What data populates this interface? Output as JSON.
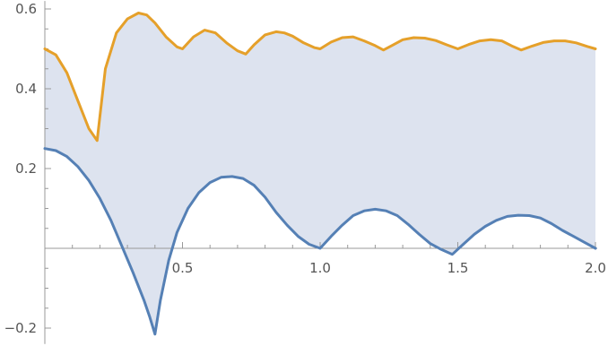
{
  "chart_data": {
    "type": "area",
    "xlim": [
      0,
      2.0
    ],
    "ylim": [
      -0.24,
      0.62
    ],
    "grid": false,
    "legend": "none",
    "x_ticks": [
      {
        "value": 0.5,
        "label": "0.5"
      },
      {
        "value": 1.0,
        "label": "1.0"
      },
      {
        "value": 1.5,
        "label": "1.5"
      },
      {
        "value": 2.0,
        "label": "2.0"
      }
    ],
    "y_ticks": [
      {
        "value": -0.2,
        "label": "−0.2"
      },
      {
        "value": 0.2,
        "label": "0.2"
      },
      {
        "value": 0.4,
        "label": "0.4"
      },
      {
        "value": 0.6,
        "label": "0.6"
      }
    ],
    "fill_color": "#dde3ef",
    "series": [
      {
        "color": "#e5a02a",
        "x": [
          0,
          0.04,
          0.08,
          0.12,
          0.16,
          0.19,
          0.22,
          0.26,
          0.3,
          0.34,
          0.37,
          0.4,
          0.44,
          0.48,
          0.5,
          0.54,
          0.58,
          0.62,
          0.66,
          0.7,
          0.73,
          0.76,
          0.8,
          0.84,
          0.87,
          0.9,
          0.94,
          0.98,
          1.0,
          1.04,
          1.08,
          1.12,
          1.16,
          1.2,
          1.23,
          1.26,
          1.3,
          1.34,
          1.38,
          1.42,
          1.46,
          1.5,
          1.54,
          1.58,
          1.62,
          1.66,
          1.7,
          1.73,
          1.77,
          1.81,
          1.85,
          1.89,
          1.93,
          1.97,
          2.0
        ],
        "y": [
          0.5,
          0.485,
          0.44,
          0.37,
          0.3,
          0.27,
          0.45,
          0.54,
          0.575,
          0.59,
          0.585,
          0.565,
          0.53,
          0.505,
          0.5,
          0.53,
          0.547,
          0.54,
          0.515,
          0.495,
          0.487,
          0.51,
          0.535,
          0.543,
          0.54,
          0.532,
          0.515,
          0.503,
          0.5,
          0.517,
          0.528,
          0.53,
          0.52,
          0.508,
          0.497,
          0.508,
          0.523,
          0.528,
          0.527,
          0.521,
          0.51,
          0.5,
          0.511,
          0.52,
          0.523,
          0.52,
          0.506,
          0.497,
          0.507,
          0.516,
          0.52,
          0.52,
          0.515,
          0.506,
          0.5
        ]
      },
      {
        "color": "#5580b5",
        "x": [
          0,
          0.04,
          0.08,
          0.12,
          0.16,
          0.2,
          0.24,
          0.28,
          0.32,
          0.36,
          0.38,
          0.4,
          0.42,
          0.45,
          0.48,
          0.52,
          0.56,
          0.6,
          0.64,
          0.68,
          0.72,
          0.76,
          0.8,
          0.84,
          0.88,
          0.92,
          0.96,
          1.0,
          1.04,
          1.08,
          1.12,
          1.16,
          1.2,
          1.24,
          1.28,
          1.32,
          1.36,
          1.4,
          1.44,
          1.48,
          1.52,
          1.56,
          1.6,
          1.64,
          1.68,
          1.72,
          1.76,
          1.8,
          1.84,
          1.88,
          1.92,
          1.96,
          2.0
        ],
        "y": [
          0.25,
          0.245,
          0.23,
          0.205,
          0.17,
          0.125,
          0.07,
          0.005,
          -0.06,
          -0.13,
          -0.17,
          -0.215,
          -0.13,
          -0.03,
          0.04,
          0.1,
          0.14,
          0.165,
          0.178,
          0.18,
          0.175,
          0.158,
          0.128,
          0.09,
          0.058,
          0.03,
          0.01,
          0.0,
          0.03,
          0.058,
          0.082,
          0.094,
          0.098,
          0.094,
          0.082,
          0.06,
          0.035,
          0.012,
          -0.003,
          -0.015,
          0.01,
          0.035,
          0.055,
          0.07,
          0.08,
          0.083,
          0.082,
          0.076,
          0.062,
          0.045,
          0.03,
          0.015,
          0.0
        ]
      }
    ]
  }
}
